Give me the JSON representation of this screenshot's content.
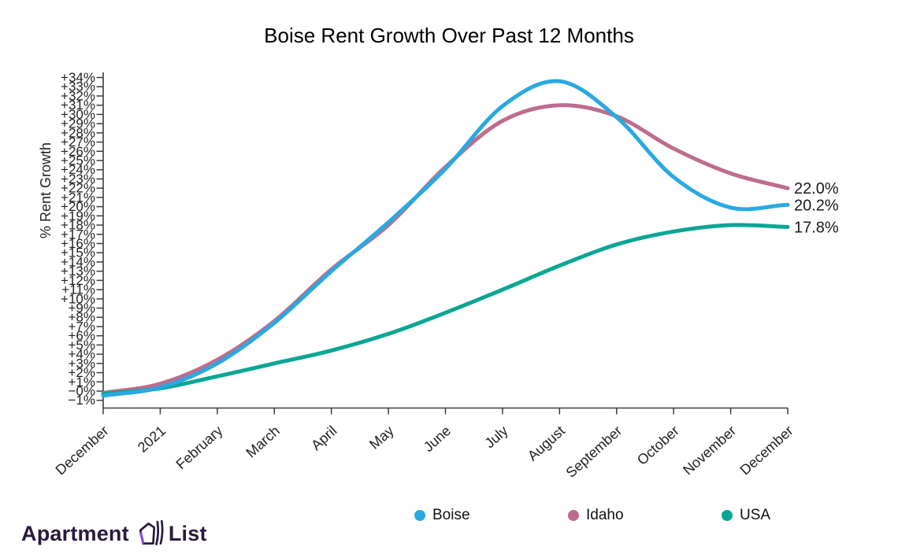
{
  "title": "Boise Rent Growth Over Past 12 Months",
  "chart_data": {
    "type": "line",
    "title": "Boise Rent Growth Over Past 12 Months",
    "xlabel": "",
    "ylabel": "% Rent Growth",
    "x_labels": [
      "December",
      "2021",
      "February",
      "March",
      "April",
      "May",
      "June",
      "July",
      "August",
      "September",
      "October",
      "November",
      "December"
    ],
    "ylim": [
      -1,
      34
    ],
    "y_tick_step": 1,
    "y_tick_format": "signed percent",
    "grid": false,
    "legend_position": "bottom",
    "line_shape": "spline",
    "series": [
      {
        "name": "Boise",
        "color": "#29a9e1",
        "end_label": "20.2%",
        "values": [
          -0.5,
          0.4,
          3.0,
          7.4,
          13.0,
          18.3,
          24.1,
          30.9,
          33.6,
          29.7,
          23.2,
          19.9,
          20.2
        ]
      },
      {
        "name": "Idaho",
        "color": "#bd6d8d",
        "end_label": "22.0%",
        "values": [
          -0.2,
          0.8,
          3.4,
          7.6,
          13.2,
          18.0,
          24.3,
          29.3,
          31.0,
          29.8,
          26.3,
          23.6,
          22.0
        ]
      },
      {
        "name": "USA",
        "color": "#0aa694",
        "end_label": "17.8%",
        "values": [
          -0.3,
          0.3,
          1.6,
          3.0,
          4.4,
          6.2,
          8.5,
          11.0,
          13.6,
          15.9,
          17.3,
          18.0,
          17.8
        ]
      }
    ]
  },
  "footer": {
    "brand_left": "Apartment",
    "brand_right": "List"
  },
  "colors": {
    "axis": "#3d3d3d",
    "tick_text": "#222222",
    "end_label_text": "#1a1a1a",
    "logo": "#2a1a3e",
    "logo_accent": "#8a4be8",
    "background": "#ffffff"
  }
}
